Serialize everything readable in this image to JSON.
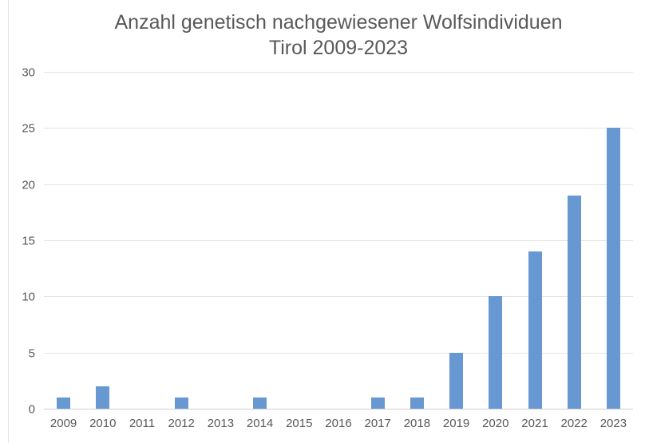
{
  "page": {
    "background_color": "#ffffff"
  },
  "chart_data": {
    "type": "bar",
    "title": "Anzahl genetisch nachgewiesener Wolfsindividuen",
    "subtitle": "Tirol 2009-2023",
    "categories": [
      "2009",
      "2010",
      "2011",
      "2012",
      "2013",
      "2014",
      "2015",
      "2016",
      "2017",
      "2018",
      "2019",
      "2020",
      "2021",
      "2022",
      "2023"
    ],
    "values": [
      1,
      2,
      0,
      1,
      0,
      1,
      0,
      0,
      1,
      1,
      5,
      10,
      14,
      19,
      25
    ],
    "xlabel": "",
    "ylabel": "",
    "ylim": [
      0,
      30
    ],
    "yticks": [
      0,
      5,
      10,
      15,
      20,
      25,
      30
    ],
    "grid": true,
    "legend": "none",
    "bar_color": "#6898d2",
    "gridline_color": "#e4e4e4",
    "axis_line_color": "#cfcfcf",
    "text_color": "#595959"
  }
}
